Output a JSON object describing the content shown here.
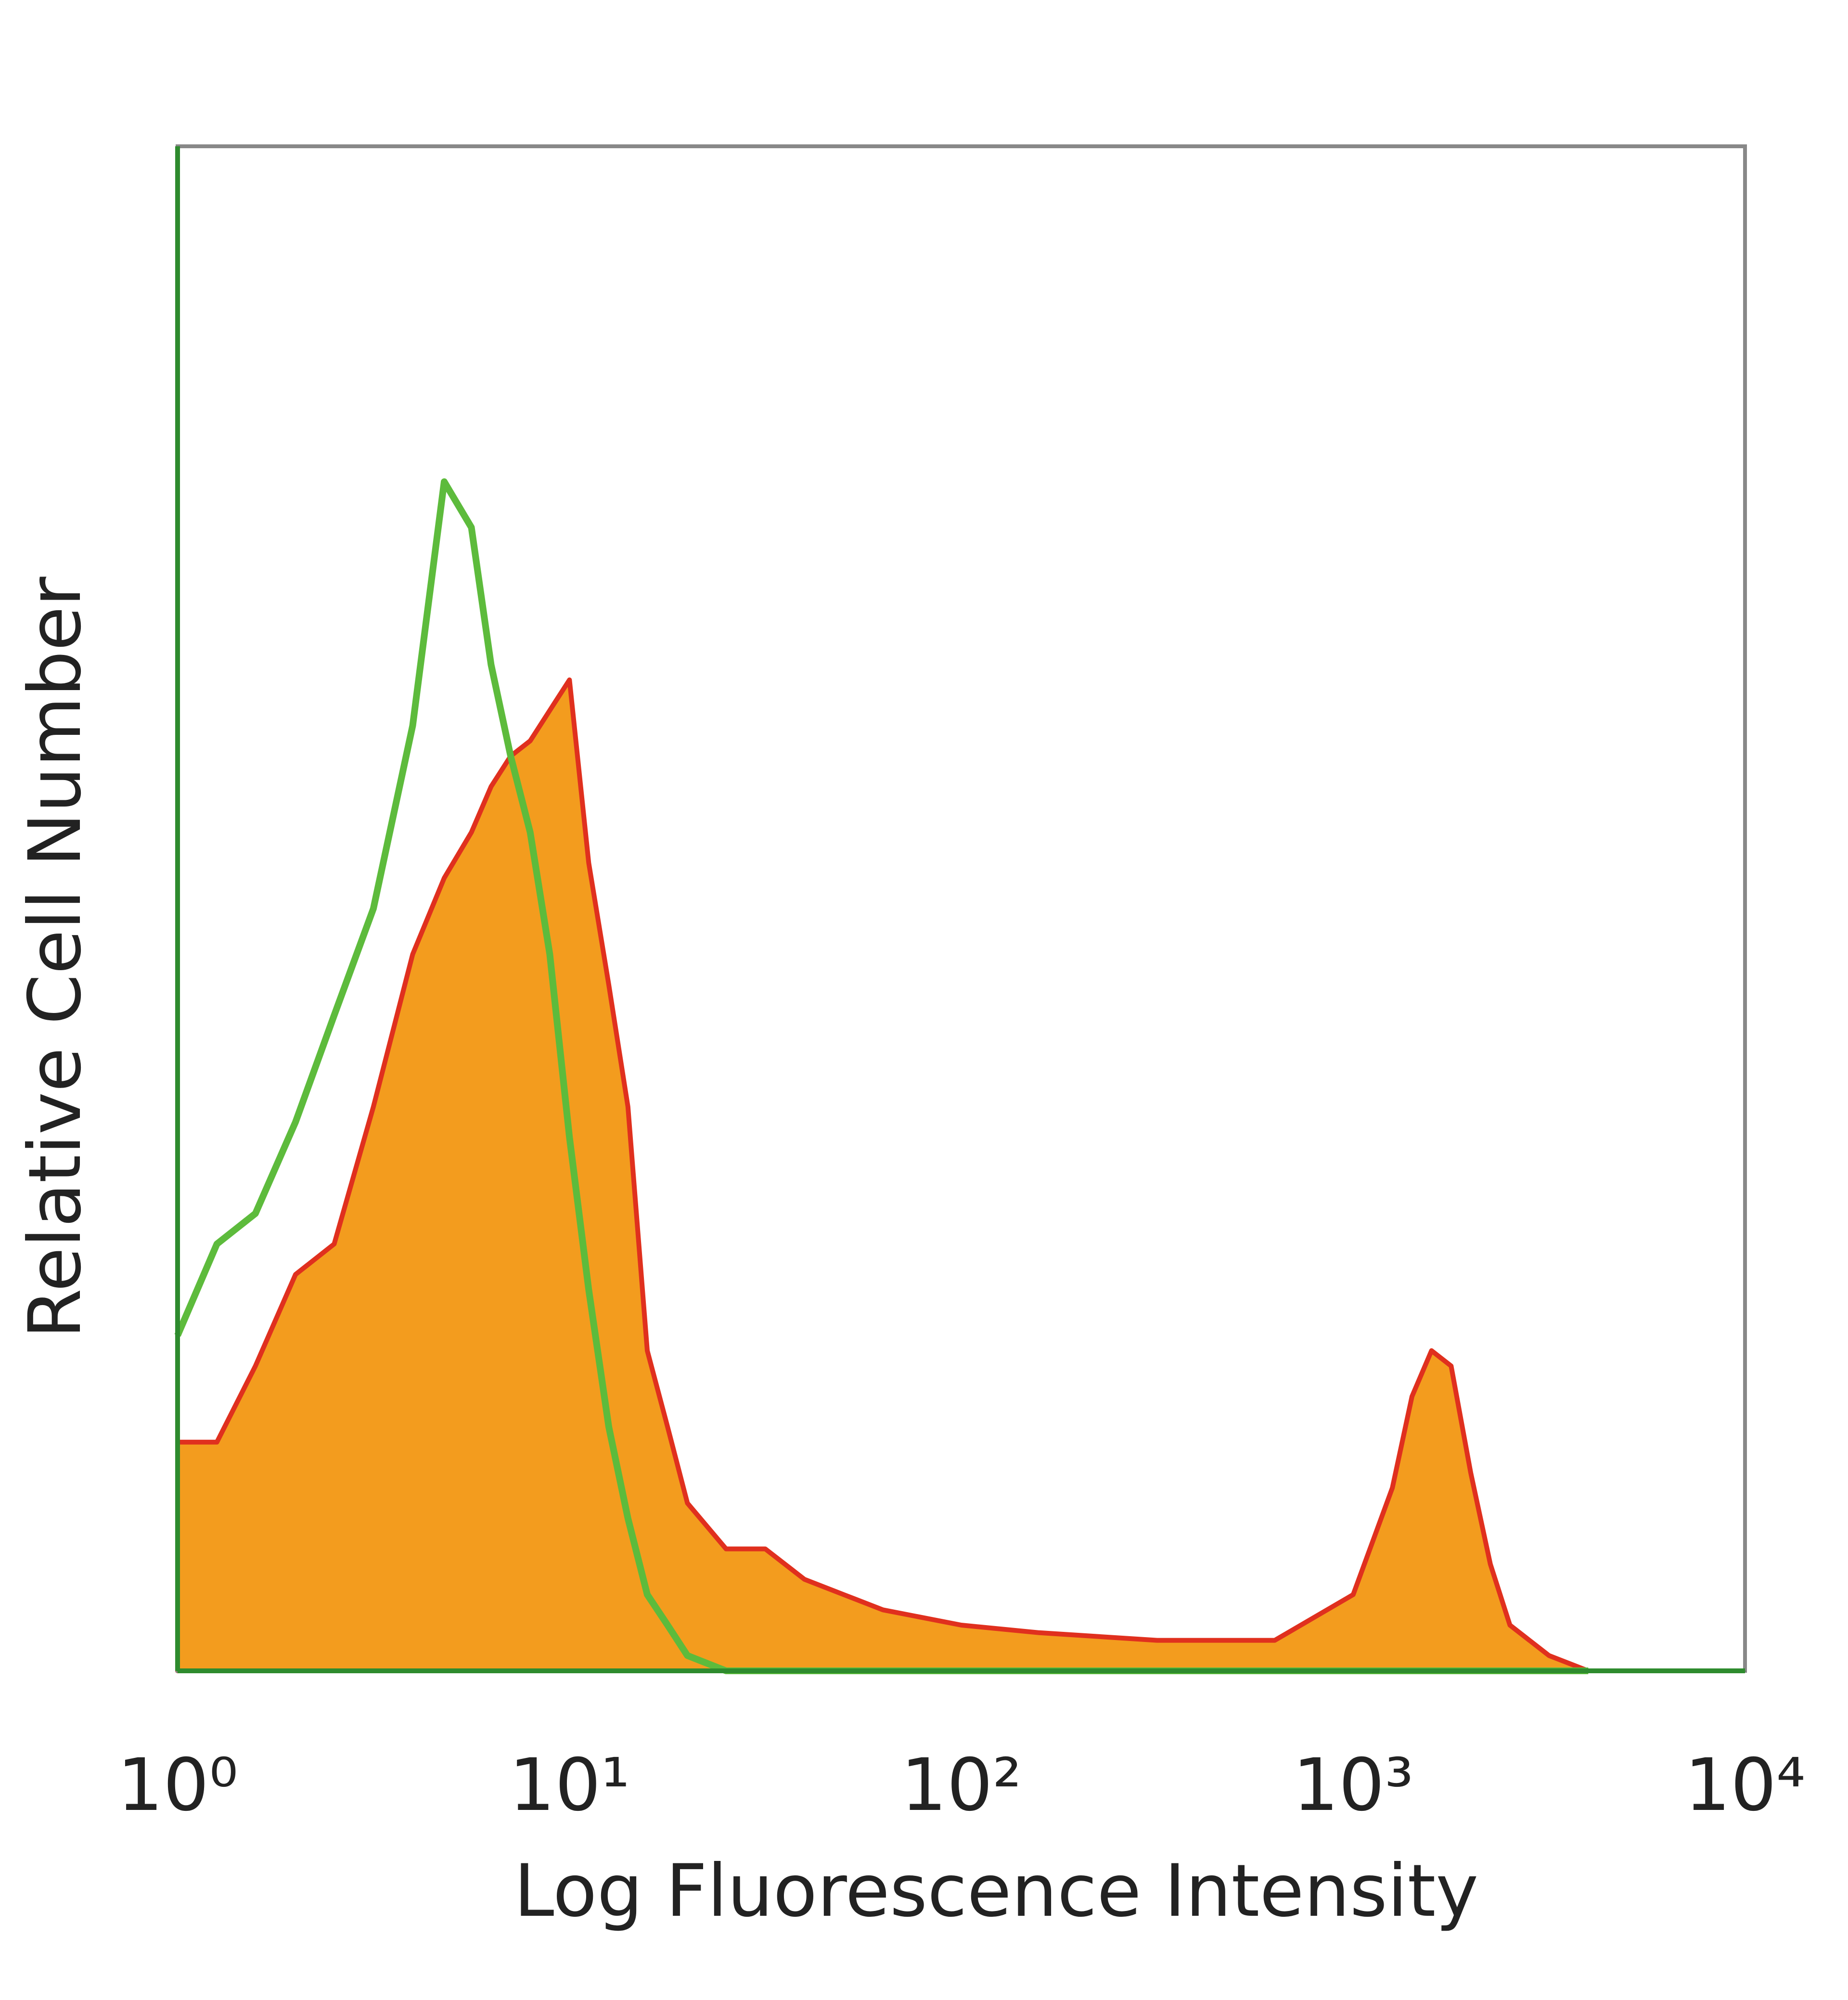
{
  "chart_data": {
    "type": "histogram",
    "xlabel": "Log Fluorescence Intensity",
    "ylabel": "Relative Cell Number",
    "xscale": "log",
    "xlim": [
      1,
      10000
    ],
    "xticks": [
      {
        "value": 1,
        "label": "10⁰"
      },
      {
        "value": 10,
        "label": "10¹"
      },
      {
        "value": 100,
        "label": "10²"
      },
      {
        "value": 1000,
        "label": "10³"
      },
      {
        "value": 10000,
        "label": "10⁴"
      }
    ],
    "ylim": [
      0,
      100
    ],
    "x": [
      1,
      1.26,
      1.58,
      2,
      2.51,
      3.16,
      3.98,
      4.79,
      5.62,
      6.31,
      7.08,
      7.94,
      8.91,
      10,
      11.2,
      12.6,
      14.1,
      15.8,
      17.8,
      20,
      25.1,
      31.6,
      39.8,
      50.1,
      63.1,
      100,
      158,
      316,
      631,
      1000,
      1259,
      1413,
      1585,
      1778,
      1995,
      2239,
      2512,
      3162,
      3981
    ],
    "series": [
      {
        "color": "#f39c1e",
        "edge_color": "#e0301e",
        "fill": true,
        "values": [
          15,
          15,
          20,
          26,
          28,
          37,
          47,
          52,
          55,
          58,
          60,
          61,
          63,
          65,
          53,
          45,
          37,
          21,
          16,
          11,
          8,
          8,
          6,
          5,
          4,
          3,
          2.5,
          2,
          2,
          5,
          12,
          18,
          21,
          20,
          13,
          7,
          3,
          1,
          0
        ]
      },
      {
        "color": "#5dbb3c",
        "fill": false,
        "values": [
          22,
          28,
          30,
          36,
          43,
          50,
          62,
          78,
          75,
          66,
          60,
          55,
          47,
          35,
          25,
          16,
          10,
          5,
          3,
          1,
          0,
          0,
          0,
          0,
          0,
          0,
          0,
          0,
          0,
          0,
          0,
          0,
          0,
          0,
          0,
          0,
          0,
          0,
          0
        ]
      }
    ]
  }
}
